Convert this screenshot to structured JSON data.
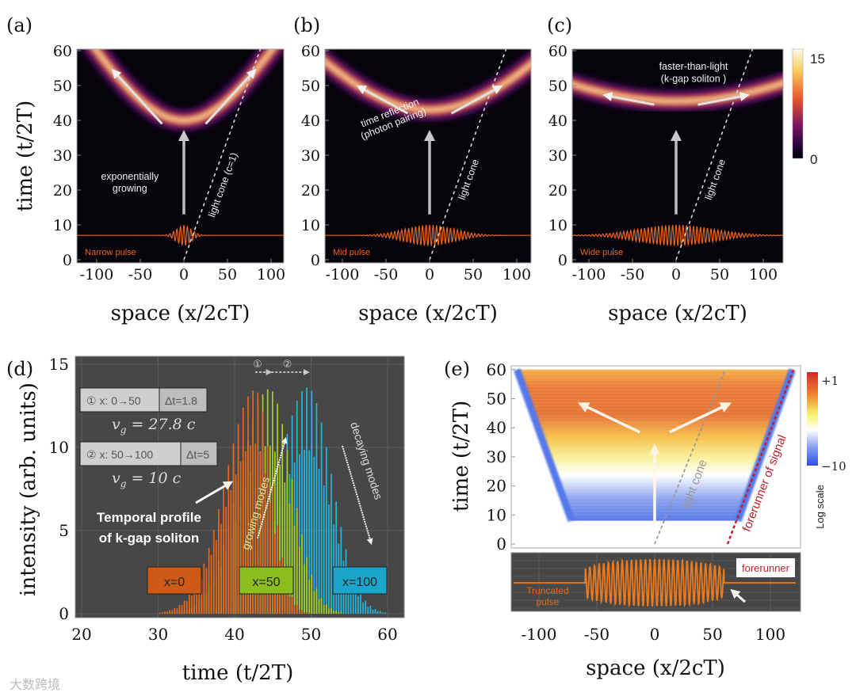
{
  "panel_labels": {
    "a": "(a)",
    "b": "(b)",
    "c": "(c)",
    "d": "(d)",
    "e": "(e)"
  },
  "colorbar_top": {
    "max": "15",
    "min": "0"
  },
  "watermark": "大数跨境",
  "chart_data": [
    {
      "panel": "a",
      "type": "heatmap",
      "xlabel": "space (x/2cT)",
      "ylabel": "time (t/2T)",
      "xticks": [
        -100,
        -50,
        0,
        50,
        100
      ],
      "yticks": [
        0,
        10,
        20,
        30,
        40,
        50,
        60
      ],
      "xlim": [
        -122,
        115
      ],
      "ylim": [
        0,
        61
      ],
      "pulse_label": "Narrow pulse",
      "pulse_time": 7,
      "pulse_width": 12,
      "wavefront_vertex_time": 40,
      "wavefront_edge_time": 60,
      "annotations": [
        "exponentially",
        "growing",
        "light cone (c=1)"
      ]
    },
    {
      "panel": "b",
      "type": "heatmap",
      "xlabel": "space (x/2cT)",
      "ylabel": "",
      "xticks": [
        -100,
        -50,
        0,
        50,
        100
      ],
      "yticks": [
        0,
        10,
        20,
        30,
        40,
        50,
        60
      ],
      "xlim": [
        -122,
        115
      ],
      "ylim": [
        0,
        61
      ],
      "pulse_label": "Mid pulse",
      "pulse_time": 7,
      "pulse_width": 40,
      "wavefront_vertex_time": 43,
      "wavefront_edge_time": 53,
      "annotations": [
        "time reflection",
        "(photon pairing)",
        "light cone"
      ]
    },
    {
      "panel": "c",
      "type": "heatmap",
      "xlabel": "space (x/2cT)",
      "ylabel": "",
      "xticks": [
        -100,
        -50,
        0,
        50,
        100
      ],
      "yticks": [
        0,
        10,
        20,
        30,
        40,
        50,
        60
      ],
      "xlim": [
        -122,
        118
      ],
      "ylim": [
        0,
        61
      ],
      "pulse_label": "Wide pulse",
      "pulse_time": 7,
      "pulse_width": 60,
      "wavefront_vertex_time": 45.5,
      "wavefront_edge_time": 49,
      "colorbar": {
        "min": 0,
        "max": 15
      },
      "annotations": [
        "faster-than-light",
        "(k-gap soliton )",
        "light cone"
      ]
    },
    {
      "panel": "d",
      "type": "bar",
      "xlabel": "time (t/2T)",
      "ylabel": "intensity (arb. units)",
      "xticks": [
        20,
        30,
        40,
        50,
        60
      ],
      "yticks": [
        0,
        5,
        10,
        15
      ],
      "xlim": [
        20,
        60
      ],
      "ylim": [
        0,
        15.5
      ],
      "series": [
        {
          "name": "x=100",
          "peak_time": 49.5,
          "peak": 14,
          "rise_width": 5.5,
          "fall_width": 4.5,
          "color": "#1fb8e2"
        },
        {
          "name": "x=50",
          "peak_time": 44.5,
          "peak": 14,
          "rise_width": 5.5,
          "fall_width": 4.2,
          "color": "#a9d11f"
        },
        {
          "name": "x=0",
          "peak_time": 42.7,
          "peak": 14,
          "rise_width": 5.5,
          "fall_width": 3.0,
          "color": "#ea661a"
        }
      ],
      "box1": {
        "left": "① x: 0→50",
        "right": "Δt=1.8",
        "v": "v",
        "sub": "g",
        "value": " = 27.8 c"
      },
      "box2": {
        "left": "② x: 50→100",
        "right": "Δt=5",
        "v": "v",
        "sub": "g",
        "value": " = 10 c"
      },
      "markers": [
        "①",
        "②"
      ],
      "annotations": [
        "Temporal profile",
        "of k-gap soliton",
        "growing modes",
        "decaying modes"
      ]
    },
    {
      "panel": "e",
      "type": "heatmap",
      "xlabel": "space (x/2cT)",
      "ylabel": "time (t/2T)",
      "xticks": [
        -100,
        -50,
        0,
        50,
        100
      ],
      "yticks": [
        0,
        10,
        20,
        30,
        40,
        50,
        60
      ],
      "xlim": [
        -124,
        125
      ],
      "ylim": [
        0,
        61
      ],
      "colorbar": {
        "max_label": "+1",
        "min_label": "−10",
        "title": "Log scale"
      },
      "annotations": [
        "light cone",
        "forerunner of signal"
      ],
      "inset": {
        "label1": "Truncated",
        "label2": "pulse",
        "forerunner": "forerunner",
        "truncation_x": [
          -60,
          60
        ]
      }
    }
  ]
}
